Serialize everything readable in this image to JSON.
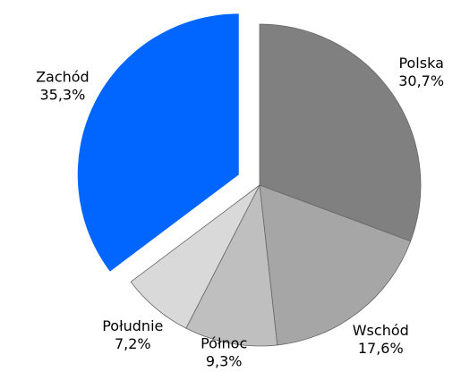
{
  "chart_data": {
    "type": "pie",
    "categories": [
      "Polska",
      "Wschód",
      "Północ",
      "Południe",
      "Zachód"
    ],
    "values": [
      30.7,
      17.6,
      9.3,
      7.2,
      35.3
    ],
    "value_labels": [
      "30,7%",
      "17,6%",
      "9,3%",
      "7,2%",
      "35,3%"
    ],
    "colors": [
      "#808080",
      "#a6a6a6",
      "#bfbfbf",
      "#d9d9d9",
      "#0066ff"
    ],
    "exploded": "Zachód"
  }
}
